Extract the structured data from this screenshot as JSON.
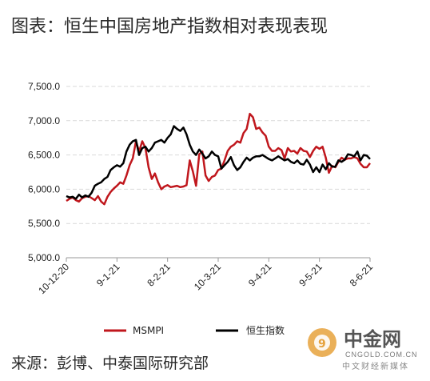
{
  "title": "图表：恒生中国房地产指数相对表现表现",
  "source": "来源：彭博、中泰国际研究部",
  "watermark": {
    "name": "中金网",
    "url": "CNGOLD.COM.CN",
    "subtitle": "中文财经新媒体"
  },
  "chart_data": {
    "type": "line",
    "ylim": [
      5000,
      7500
    ],
    "yticks": [
      5000,
      5500,
      6000,
      6500,
      7000,
      7500
    ],
    "ytick_labels": [
      "5,000.0",
      "5,500.0",
      "6,000.0",
      "6,500.0",
      "7,000.0",
      "7,500.0"
    ],
    "x_tick_labels": [
      "10-12-20",
      "9-1-21",
      "8-2-21",
      "10-3-21",
      "9-4-21",
      "9-5-21",
      "8-6-21"
    ],
    "grid": true,
    "legend_position": "bottom",
    "colors": {
      "MSMPI": "#c0171d",
      "恒生指数": "#000000"
    },
    "series": [
      {
        "name": "MSMPI",
        "values": [
          5830,
          5860,
          5880,
          5840,
          5820,
          5870,
          5890,
          5900,
          5870,
          5840,
          5900,
          5820,
          5780,
          5890,
          5960,
          6010,
          6050,
          6100,
          6080,
          6200,
          6350,
          6450,
          6700,
          6550,
          6700,
          6600,
          6320,
          6150,
          6230,
          6100,
          6000,
          6040,
          6060,
          6030,
          6040,
          6050,
          6030,
          6040,
          6060,
          6420,
          6260,
          6050,
          6510,
          6550,
          6200,
          6120,
          6180,
          6200,
          6280,
          6300,
          6420,
          6560,
          6620,
          6650,
          6700,
          6680,
          6820,
          6880,
          7100,
          7050,
          6880,
          6900,
          6830,
          6780,
          6620,
          6560,
          6560,
          6600,
          6570,
          6450,
          6600,
          6550,
          6560,
          6520,
          6600,
          6560,
          6550,
          6470,
          6560,
          6620,
          6590,
          6620,
          6460,
          6240,
          6340,
          6320,
          6400,
          6460,
          6430,
          6450,
          6450,
          6470,
          6450,
          6370,
          6320,
          6320,
          6380
        ]
      },
      {
        "name": "恒生指数",
        "values": [
          5900,
          5880,
          5890,
          5860,
          5920,
          5880,
          5910,
          5890,
          5950,
          6050,
          6080,
          6100,
          6150,
          6180,
          6280,
          6320,
          6350,
          6330,
          6380,
          6550,
          6650,
          6700,
          6720,
          6500,
          6600,
          6620,
          6550,
          6600,
          6680,
          6700,
          6720,
          6680,
          6750,
          6800,
          6920,
          6880,
          6850,
          6900,
          6800,
          6650,
          6550,
          6500,
          6580,
          6520,
          6450,
          6480,
          6550,
          6500,
          6480,
          6300,
          6350,
          6400,
          6470,
          6350,
          6280,
          6320,
          6400,
          6460,
          6420,
          6460,
          6480,
          6480,
          6500,
          6470,
          6440,
          6420,
          6450,
          6480,
          6450,
          6420,
          6440,
          6400,
          6380,
          6420,
          6370,
          6360,
          6430,
          6360,
          6250,
          6320,
          6250,
          6360,
          6290,
          6380,
          6330,
          6330,
          6420,
          6400,
          6430,
          6510,
          6500,
          6480,
          6550,
          6420,
          6500,
          6490,
          6440
        ]
      }
    ]
  }
}
